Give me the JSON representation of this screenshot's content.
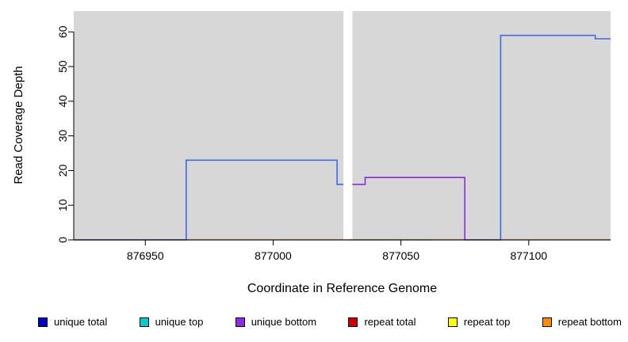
{
  "chart_data": {
    "type": "line",
    "title": "",
    "xlabel": "Coordinate in Reference Genome",
    "ylabel": "Read Coverage Depth",
    "xlim": [
      876922,
      877132
    ],
    "ylim": [
      0,
      66
    ],
    "xticks": [
      876950,
      877000,
      877050,
      877100
    ],
    "yticks": [
      0,
      10,
      20,
      30,
      40,
      50,
      60
    ],
    "plot_bg": "#d7d7d7",
    "page_bg": "#ffffff",
    "gap_band": {
      "x1": 877027.5,
      "x2": 877031.0,
      "color": "#ffffff"
    },
    "series": [
      {
        "name": "repeat-total-baseline",
        "color": "#dd0000",
        "width": 1.2,
        "points": [
          [
            876922,
            0
          ],
          [
            877132,
            0
          ]
        ]
      },
      {
        "name": "baseline-green-segment",
        "color": "#2eb82e",
        "width": 1.2,
        "points": [
          [
            877030,
            0
          ],
          [
            877062,
            0
          ]
        ]
      },
      {
        "name": "unique-total-left-block",
        "color": "#4169e1",
        "width": 1.6,
        "points": [
          [
            876922,
            0
          ],
          [
            876966,
            0
          ],
          [
            876966,
            23
          ],
          [
            877025,
            23
          ],
          [
            877025,
            16
          ],
          [
            877027.5,
            16
          ]
        ]
      },
      {
        "name": "unique-bottom-block",
        "color": "#8a2be2",
        "width": 1.6,
        "points": [
          [
            877031,
            16
          ],
          [
            877036,
            16
          ],
          [
            877036,
            18
          ],
          [
            877075,
            18
          ],
          [
            877075,
            0
          ]
        ]
      },
      {
        "name": "unique-total-right-block",
        "color": "#4169e1",
        "width": 1.6,
        "points": [
          [
            877075,
            0
          ],
          [
            877089,
            0
          ],
          [
            877089,
            59
          ],
          [
            877126,
            59
          ],
          [
            877126,
            58
          ],
          [
            877132,
            58
          ]
        ]
      }
    ],
    "legend": [
      {
        "label": "unique total",
        "color": "#0000cd"
      },
      {
        "label": "unique top",
        "color": "#00cdcd"
      },
      {
        "label": "unique bottom",
        "color": "#8a2be2"
      },
      {
        "label": "repeat total",
        "color": "#cd0000"
      },
      {
        "label": "repeat top",
        "color": "#ffff00"
      },
      {
        "label": "repeat bottom",
        "color": "#ff8c00"
      }
    ]
  }
}
